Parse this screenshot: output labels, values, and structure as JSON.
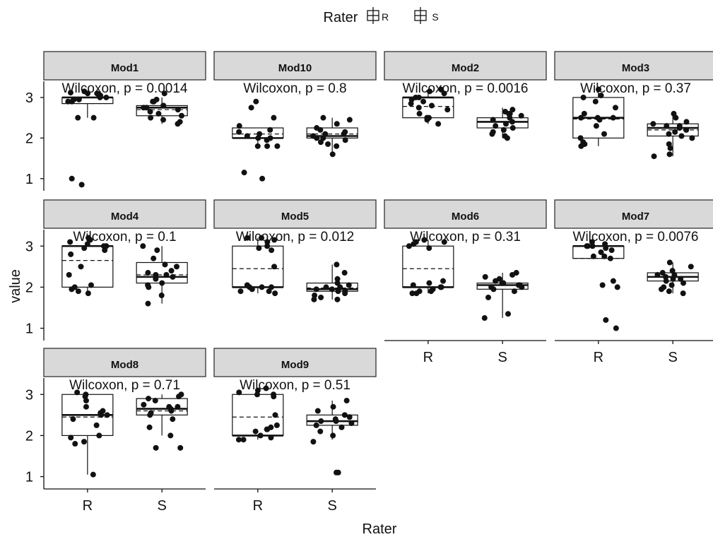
{
  "chart_data": {
    "type": "boxplot",
    "legend": {
      "title": "Rater",
      "entries": [
        "R",
        "S"
      ],
      "position": "top"
    },
    "xlabel": "Rater",
    "ylabel": "value",
    "categories": [
      "R",
      "S"
    ],
    "ylim": [
      0.7,
      3.4
    ],
    "yticks": [
      1,
      2,
      3
    ],
    "grid": false,
    "facets": [
      {
        "title": "Mod1",
        "annotation": "Wilcoxon, p = 0.0014",
        "boxes": [
          {
            "group": "R",
            "q1": 2.85,
            "median": 3.0,
            "q3": 3.0,
            "mean": 2.85,
            "whisker_low": 2.5,
            "whisker_high": 3.0,
            "points": [
              3.1,
              3.12,
              3.15,
              3.05,
              2.95,
              3.0,
              2.9,
              3.0,
              2.95,
              3.08,
              2.9,
              2.5,
              2.5,
              3.1,
              1.0,
              0.85
            ]
          },
          {
            "group": "S",
            "q1": 2.55,
            "median": 2.75,
            "q3": 2.8,
            "mean": 2.7,
            "whisker_low": 2.35,
            "whisker_high": 3.0,
            "points": [
              3.1,
              2.95,
              2.9,
              2.8,
              2.75,
              2.75,
              2.7,
              2.65,
              2.6,
              2.55,
              2.5,
              2.45,
              2.4,
              2.35,
              2.9,
              2.8
            ]
          }
        ]
      },
      {
        "title": "Mod10",
        "annotation": "Wilcoxon, p = 0.8",
        "boxes": [
          {
            "group": "R",
            "q1": 2.0,
            "median": 2.0,
            "q3": 2.25,
            "mean": 2.1,
            "whisker_low": 1.8,
            "whisker_high": 2.25,
            "points": [
              2.9,
              2.75,
              2.5,
              2.3,
              2.2,
              2.15,
              2.1,
              2.05,
              2.0,
              2.0,
              1.95,
              1.8,
              1.8,
              1.8,
              1.15,
              1.0
            ]
          },
          {
            "group": "S",
            "q1": 2.0,
            "median": 2.05,
            "q3": 2.25,
            "mean": 2.1,
            "whisker_low": 1.6,
            "whisker_high": 2.5,
            "points": [
              2.5,
              2.45,
              2.35,
              2.25,
              2.2,
              2.15,
              2.1,
              2.05,
              2.0,
              2.0,
              1.95,
              1.9,
              1.85,
              1.8,
              1.6,
              2.1
            ]
          }
        ]
      },
      {
        "title": "Mod2",
        "annotation": "Wilcoxon, p = 0.0016",
        "boxes": [
          {
            "group": "R",
            "q1": 2.5,
            "median": 3.0,
            "q3": 3.0,
            "mean": 2.78,
            "whisker_low": 2.35,
            "whisker_high": 3.2,
            "points": [
              3.2,
              3.15,
              3.1,
              3.0,
              3.0,
              2.95,
              2.9,
              2.85,
              2.8,
              2.75,
              2.7,
              2.6,
              2.5,
              2.45,
              2.35,
              2.5
            ]
          },
          {
            "group": "S",
            "q1": 2.25,
            "median": 2.4,
            "q3": 2.5,
            "mean": 2.4,
            "whisker_low": 2.0,
            "whisker_high": 2.75,
            "points": [
              2.7,
              2.65,
              2.6,
              2.55,
              2.5,
              2.45,
              2.4,
              2.35,
              2.3,
              2.25,
              2.2,
              2.15,
              2.1,
              2.05,
              2.0,
              2.6
            ]
          }
        ]
      },
      {
        "title": "Mod3",
        "annotation": "Wilcoxon, p = 0.37",
        "boxes": [
          {
            "group": "R",
            "q1": 2.0,
            "median": 2.5,
            "q3": 3.0,
            "mean": 2.47,
            "whisker_low": 1.8,
            "whisker_high": 3.2,
            "points": [
              3.2,
              3.05,
              3.0,
              2.9,
              2.75,
              2.6,
              2.5,
              2.5,
              2.45,
              2.3,
              2.1,
              2.0,
              1.9,
              1.85,
              1.8,
              2.5
            ]
          },
          {
            "group": "S",
            "q1": 2.05,
            "median": 2.25,
            "q3": 2.35,
            "mean": 2.2,
            "whisker_low": 1.55,
            "whisker_high": 2.6,
            "points": [
              2.6,
              2.5,
              2.4,
              2.35,
              2.3,
              2.25,
              2.2,
              2.15,
              2.1,
              2.05,
              2.0,
              1.85,
              1.75,
              1.6,
              1.55,
              2.3
            ]
          }
        ]
      },
      {
        "title": "Mod4",
        "annotation": "Wilcoxon, p = 0.1",
        "boxes": [
          {
            "group": "R",
            "q1": 2.0,
            "median": 3.0,
            "q3": 3.0,
            "mean": 2.65,
            "whisker_low": 1.85,
            "whisker_high": 3.2,
            "points": [
              3.2,
              3.15,
              3.1,
              3.05,
              3.0,
              2.95,
              2.9,
              2.8,
              2.5,
              2.3,
              2.05,
              2.0,
              1.95,
              1.9,
              1.85,
              3.0
            ]
          },
          {
            "group": "S",
            "q1": 2.1,
            "median": 2.25,
            "q3": 2.6,
            "mean": 2.3,
            "whisker_low": 1.6,
            "whisker_high": 3.0,
            "points": [
              3.0,
              2.9,
              2.7,
              2.55,
              2.5,
              2.4,
              2.35,
              2.3,
              2.25,
              2.2,
              2.1,
              2.05,
              2.0,
              1.8,
              1.6,
              2.3
            ]
          }
        ]
      },
      {
        "title": "Mod5",
        "annotation": "Wilcoxon, p = 0.012",
        "boxes": [
          {
            "group": "R",
            "q1": 2.0,
            "median": 2.0,
            "q3": 3.0,
            "mean": 2.45,
            "whisker_low": 1.85,
            "whisker_high": 3.2,
            "points": [
              3.2,
              3.15,
              3.1,
              3.0,
              2.95,
              2.9,
              2.5,
              2.05,
              2.0,
              2.0,
              1.95,
              1.9,
              1.9,
              1.85,
              2.0,
              3.2
            ]
          },
          {
            "group": "S",
            "q1": 1.9,
            "median": 1.95,
            "q3": 2.1,
            "mean": 1.98,
            "whisker_low": 1.7,
            "whisker_high": 2.55,
            "points": [
              2.55,
              2.35,
              2.2,
              2.1,
              2.05,
              2.0,
              1.95,
              1.95,
              1.9,
              1.9,
              1.85,
              1.8,
              1.75,
              1.7,
              1.7,
              2.0
            ]
          }
        ]
      },
      {
        "title": "Mod6",
        "annotation": "Wilcoxon, p = 0.31",
        "boxes": [
          {
            "group": "R",
            "q1": 2.0,
            "median": 2.0,
            "q3": 3.0,
            "mean": 2.45,
            "whisker_low": 1.85,
            "whisker_high": 3.15,
            "points": [
              3.15,
              3.1,
              3.05,
              3.0,
              2.95,
              2.15,
              2.1,
              2.05,
              2.0,
              2.0,
              1.95,
              1.9,
              1.85,
              1.85,
              1.9,
              3.1
            ]
          },
          {
            "group": "S",
            "q1": 1.95,
            "median": 2.05,
            "q3": 2.1,
            "mean": 2.05,
            "whisker_low": 1.25,
            "whisker_high": 2.35,
            "points": [
              2.35,
              2.3,
              2.25,
              2.2,
              2.15,
              2.1,
              2.05,
              2.0,
              2.0,
              1.95,
              1.9,
              1.75,
              1.35,
              1.25,
              2.1,
              2.05
            ]
          }
        ]
      },
      {
        "title": "Mod7",
        "annotation": "Wilcoxon, p = 0.0076",
        "boxes": [
          {
            "group": "R",
            "q1": 2.7,
            "median": 3.0,
            "q3": 3.0,
            "mean": 2.7,
            "whisker_low": 2.7,
            "whisker_high": 3.0,
            "points": [
              3.1,
              3.05,
              3.0,
              3.0,
              2.95,
              2.9,
              2.85,
              2.75,
              2.75,
              2.7,
              2.15,
              2.05,
              2.0,
              1.2,
              1.0,
              3.0
            ]
          },
          {
            "group": "S",
            "q1": 2.15,
            "median": 2.25,
            "q3": 2.35,
            "mean": 2.25,
            "whisker_low": 1.85,
            "whisker_high": 2.6,
            "points": [
              2.6,
              2.5,
              2.4,
              2.35,
              2.3,
              2.25,
              2.2,
              2.2,
              2.15,
              2.1,
              2.05,
              2.0,
              1.95,
              1.9,
              1.85,
              2.3
            ]
          }
        ]
      },
      {
        "title": "Mod8",
        "annotation": "Wilcoxon, p = 0.71",
        "boxes": [
          {
            "group": "R",
            "q1": 2.0,
            "median": 2.5,
            "q3": 3.0,
            "mean": 2.45,
            "whisker_low": 1.05,
            "whisker_high": 3.0,
            "points": [
              3.05,
              3.0,
              2.95,
              2.85,
              2.7,
              2.6,
              2.55,
              2.5,
              2.4,
              2.25,
              2.0,
              1.95,
              1.85,
              1.8,
              1.05,
              2.5
            ]
          },
          {
            "group": "S",
            "q1": 2.5,
            "median": 2.65,
            "q3": 2.9,
            "mean": 2.6,
            "whisker_low": 2.0,
            "whisker_high": 3.0,
            "points": [
              3.0,
              2.95,
              2.9,
              2.85,
              2.75,
              2.7,
              2.65,
              2.6,
              2.55,
              2.5,
              2.4,
              2.2,
              2.0,
              1.7,
              1.7,
              2.7
            ]
          }
        ]
      },
      {
        "title": "Mod9",
        "annotation": "Wilcoxon, p = 0.51",
        "boxes": [
          {
            "group": "R",
            "q1": 2.0,
            "median": 2.0,
            "q3": 3.0,
            "mean": 2.45,
            "whisker_low": 1.9,
            "whisker_high": 3.15,
            "points": [
              3.15,
              3.1,
              3.05,
              3.0,
              2.95,
              2.5,
              2.25,
              2.2,
              2.15,
              2.1,
              2.0,
              1.95,
              1.9,
              1.9,
              2.15,
              3.0
            ]
          },
          {
            "group": "S",
            "q1": 2.25,
            "median": 2.35,
            "q3": 2.5,
            "mean": 2.35,
            "whisker_low": 1.9,
            "whisker_high": 2.85,
            "points": [
              2.85,
              2.7,
              2.6,
              2.5,
              2.45,
              2.4,
              2.35,
              2.3,
              2.25,
              2.2,
              2.1,
              2.0,
              1.85,
              1.1,
              1.1,
              2.35
            ]
          }
        ]
      }
    ]
  }
}
